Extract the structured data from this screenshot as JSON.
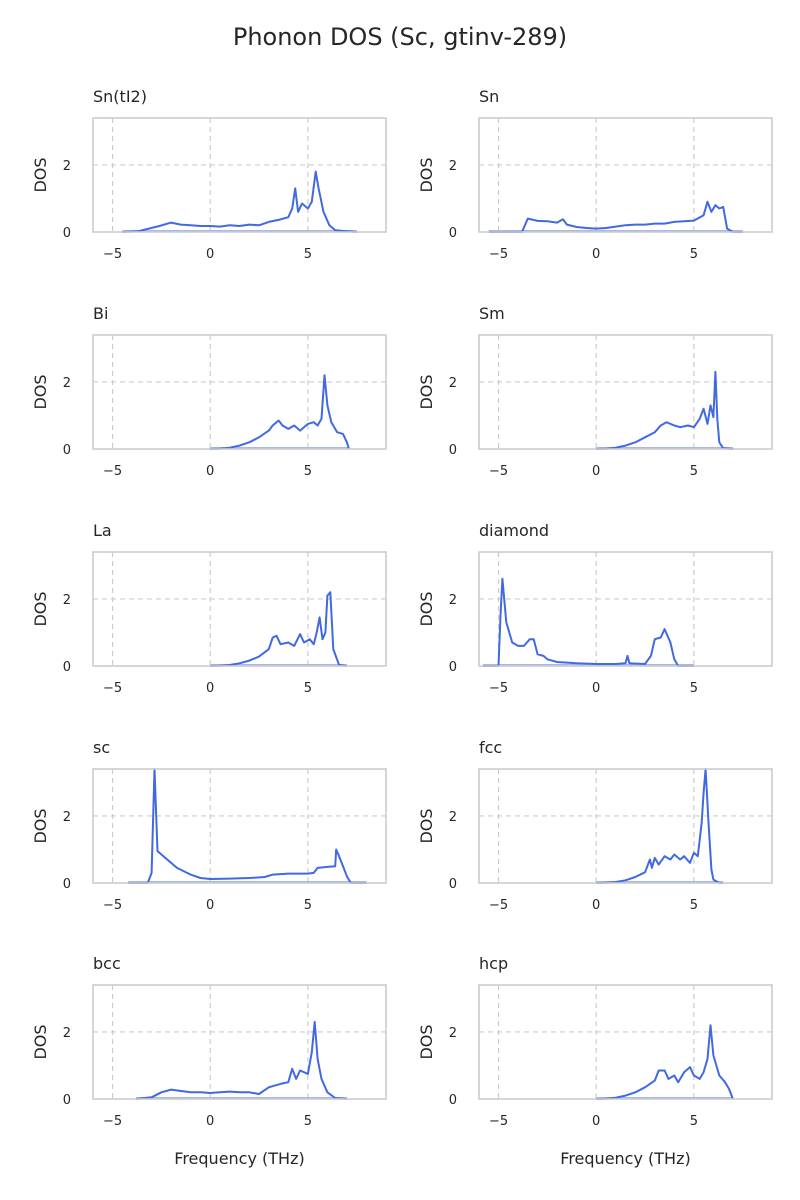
{
  "chart_data": {
    "type": "line",
    "title": "Phonon DOS (Sc, gtinv-289)",
    "xlabel": "Frequency (THz)",
    "ylabel": "DOS",
    "xlim": [
      -6,
      9
    ],
    "ylim": [
      0,
      3.4
    ],
    "xticks": [
      -5,
      0,
      5
    ],
    "yticks": [
      0,
      2
    ],
    "grid": true,
    "line_color": "#4169e1",
    "panels": [
      {
        "title": "Sn(tI2)",
        "points": [
          [
            -4.5,
            0
          ],
          [
            -3.7,
            0.02
          ],
          [
            -2.6,
            0.18
          ],
          [
            -2.0,
            0.28
          ],
          [
            -1.5,
            0.22
          ],
          [
            -1.0,
            0.2
          ],
          [
            -0.5,
            0.18
          ],
          [
            0,
            0.18
          ],
          [
            0.5,
            0.16
          ],
          [
            1.0,
            0.2
          ],
          [
            1.5,
            0.18
          ],
          [
            2.0,
            0.22
          ],
          [
            2.5,
            0.2
          ],
          [
            3.0,
            0.3
          ],
          [
            3.5,
            0.36
          ],
          [
            4.0,
            0.44
          ],
          [
            4.2,
            0.7
          ],
          [
            4.35,
            1.3
          ],
          [
            4.5,
            0.6
          ],
          [
            4.7,
            0.85
          ],
          [
            5.0,
            0.7
          ],
          [
            5.2,
            0.9
          ],
          [
            5.4,
            1.8
          ],
          [
            5.55,
            1.3
          ],
          [
            5.8,
            0.6
          ],
          [
            6.1,
            0.2
          ],
          [
            6.4,
            0.05
          ],
          [
            7.0,
            0.02
          ],
          [
            7.5,
            0
          ]
        ]
      },
      {
        "title": "Sn",
        "points": [
          [
            -5.5,
            0
          ],
          [
            -3.8,
            0
          ],
          [
            -3.5,
            0.4
          ],
          [
            -3.0,
            0.33
          ],
          [
            -2.5,
            0.32
          ],
          [
            -2.0,
            0.28
          ],
          [
            -1.7,
            0.38
          ],
          [
            -1.5,
            0.22
          ],
          [
            -1.0,
            0.15
          ],
          [
            -0.5,
            0.12
          ],
          [
            0,
            0.1
          ],
          [
            0.5,
            0.12
          ],
          [
            1.0,
            0.16
          ],
          [
            1.5,
            0.2
          ],
          [
            2.0,
            0.22
          ],
          [
            2.5,
            0.22
          ],
          [
            3.0,
            0.25
          ],
          [
            3.5,
            0.25
          ],
          [
            4.0,
            0.3
          ],
          [
            4.5,
            0.32
          ],
          [
            5.0,
            0.34
          ],
          [
            5.5,
            0.5
          ],
          [
            5.7,
            0.9
          ],
          [
            5.9,
            0.6
          ],
          [
            6.1,
            0.8
          ],
          [
            6.3,
            0.7
          ],
          [
            6.5,
            0.75
          ],
          [
            6.7,
            0.1
          ],
          [
            7.0,
            0
          ],
          [
            7.5,
            0
          ]
        ]
      },
      {
        "title": "Bi",
        "points": [
          [
            0,
            0
          ],
          [
            0.5,
            0.01
          ],
          [
            1.0,
            0.04
          ],
          [
            1.5,
            0.1
          ],
          [
            2.0,
            0.2
          ],
          [
            2.5,
            0.35
          ],
          [
            3.0,
            0.55
          ],
          [
            3.2,
            0.7
          ],
          [
            3.5,
            0.85
          ],
          [
            3.7,
            0.7
          ],
          [
            4.0,
            0.6
          ],
          [
            4.3,
            0.7
          ],
          [
            4.6,
            0.55
          ],
          [
            5.0,
            0.75
          ],
          [
            5.3,
            0.8
          ],
          [
            5.5,
            0.7
          ],
          [
            5.7,
            0.9
          ],
          [
            5.85,
            2.2
          ],
          [
            6.0,
            1.3
          ],
          [
            6.2,
            0.8
          ],
          [
            6.5,
            0.5
          ],
          [
            6.8,
            0.45
          ],
          [
            7.0,
            0.2
          ],
          [
            7.1,
            0
          ]
        ]
      },
      {
        "title": "Sm",
        "points": [
          [
            0,
            0
          ],
          [
            0.5,
            0.01
          ],
          [
            1.0,
            0.04
          ],
          [
            1.5,
            0.1
          ],
          [
            2.0,
            0.2
          ],
          [
            2.5,
            0.35
          ],
          [
            3.0,
            0.5
          ],
          [
            3.3,
            0.7
          ],
          [
            3.6,
            0.8
          ],
          [
            4.0,
            0.7
          ],
          [
            4.3,
            0.65
          ],
          [
            4.7,
            0.7
          ],
          [
            5.0,
            0.65
          ],
          [
            5.3,
            0.9
          ],
          [
            5.5,
            1.2
          ],
          [
            5.7,
            0.75
          ],
          [
            5.85,
            1.3
          ],
          [
            6.0,
            0.95
          ],
          [
            6.1,
            2.3
          ],
          [
            6.2,
            0.9
          ],
          [
            6.3,
            0.2
          ],
          [
            6.5,
            0.02
          ],
          [
            7.0,
            0
          ]
        ]
      },
      {
        "title": "La",
        "points": [
          [
            0,
            0
          ],
          [
            0.5,
            0.01
          ],
          [
            1.0,
            0.03
          ],
          [
            1.5,
            0.08
          ],
          [
            2.0,
            0.16
          ],
          [
            2.5,
            0.28
          ],
          [
            3.0,
            0.5
          ],
          [
            3.2,
            0.85
          ],
          [
            3.4,
            0.9
          ],
          [
            3.6,
            0.65
          ],
          [
            4.0,
            0.7
          ],
          [
            4.3,
            0.6
          ],
          [
            4.6,
            0.95
          ],
          [
            4.8,
            0.7
          ],
          [
            5.1,
            0.8
          ],
          [
            5.3,
            0.65
          ],
          [
            5.45,
            1.0
          ],
          [
            5.6,
            1.45
          ],
          [
            5.75,
            0.8
          ],
          [
            5.9,
            1.0
          ],
          [
            6.0,
            2.1
          ],
          [
            6.15,
            2.2
          ],
          [
            6.3,
            0.5
          ],
          [
            6.6,
            0.03
          ],
          [
            7.0,
            0
          ]
        ]
      },
      {
        "title": "diamond",
        "points": [
          [
            -5.8,
            0
          ],
          [
            -5.0,
            0
          ],
          [
            -4.9,
            1.5
          ],
          [
            -4.8,
            2.6
          ],
          [
            -4.6,
            1.3
          ],
          [
            -4.3,
            0.7
          ],
          [
            -4.0,
            0.6
          ],
          [
            -3.7,
            0.6
          ],
          [
            -3.4,
            0.8
          ],
          [
            -3.2,
            0.8
          ],
          [
            -3.0,
            0.35
          ],
          [
            -2.7,
            0.3
          ],
          [
            -2.5,
            0.2
          ],
          [
            -2.0,
            0.12
          ],
          [
            -1.0,
            0.08
          ],
          [
            0,
            0.06
          ],
          [
            1.0,
            0.06
          ],
          [
            1.5,
            0.08
          ],
          [
            1.6,
            0.3
          ],
          [
            1.7,
            0.08
          ],
          [
            2.5,
            0.06
          ],
          [
            2.8,
            0.3
          ],
          [
            3.0,
            0.8
          ],
          [
            3.3,
            0.85
          ],
          [
            3.5,
            1.1
          ],
          [
            3.8,
            0.7
          ],
          [
            4.0,
            0.2
          ],
          [
            4.2,
            0
          ],
          [
            5.0,
            0
          ]
        ]
      },
      {
        "title": "sc",
        "points": [
          [
            -4.2,
            0
          ],
          [
            -3.2,
            0
          ],
          [
            -3.0,
            0.3
          ],
          [
            -2.85,
            3.4
          ],
          [
            -2.7,
            0.95
          ],
          [
            -2.3,
            0.75
          ],
          [
            -1.7,
            0.45
          ],
          [
            -1.0,
            0.25
          ],
          [
            -0.5,
            0.15
          ],
          [
            0,
            0.12
          ],
          [
            1.0,
            0.13
          ],
          [
            2.0,
            0.15
          ],
          [
            2.8,
            0.18
          ],
          [
            3.2,
            0.25
          ],
          [
            4.0,
            0.28
          ],
          [
            5.0,
            0.28
          ],
          [
            5.3,
            0.3
          ],
          [
            5.5,
            0.45
          ],
          [
            6.0,
            0.48
          ],
          [
            6.4,
            0.5
          ],
          [
            6.45,
            1.0
          ],
          [
            6.6,
            0.8
          ],
          [
            6.8,
            0.5
          ],
          [
            7.0,
            0.2
          ],
          [
            7.2,
            0
          ],
          [
            8.0,
            0
          ]
        ]
      },
      {
        "title": "fcc",
        "points": [
          [
            0,
            0
          ],
          [
            0.5,
            0.01
          ],
          [
            1.0,
            0.03
          ],
          [
            1.5,
            0.08
          ],
          [
            2.0,
            0.18
          ],
          [
            2.5,
            0.32
          ],
          [
            2.75,
            0.7
          ],
          [
            2.85,
            0.45
          ],
          [
            3.0,
            0.75
          ],
          [
            3.2,
            0.55
          ],
          [
            3.5,
            0.8
          ],
          [
            3.8,
            0.7
          ],
          [
            4.0,
            0.85
          ],
          [
            4.3,
            0.7
          ],
          [
            4.5,
            0.8
          ],
          [
            4.8,
            0.6
          ],
          [
            5.0,
            0.9
          ],
          [
            5.2,
            0.8
          ],
          [
            5.4,
            1.8
          ],
          [
            5.5,
            2.7
          ],
          [
            5.6,
            3.4
          ],
          [
            5.75,
            1.8
          ],
          [
            5.9,
            0.4
          ],
          [
            6.0,
            0.1
          ],
          [
            6.3,
            0
          ],
          [
            6.5,
            0
          ]
        ]
      },
      {
        "title": "bcc",
        "points": [
          [
            -3.8,
            0
          ],
          [
            -3.0,
            0.05
          ],
          [
            -2.5,
            0.2
          ],
          [
            -2.0,
            0.28
          ],
          [
            -1.5,
            0.24
          ],
          [
            -1.0,
            0.2
          ],
          [
            -0.5,
            0.2
          ],
          [
            0,
            0.18
          ],
          [
            0.5,
            0.2
          ],
          [
            1.0,
            0.22
          ],
          [
            1.5,
            0.2
          ],
          [
            2.0,
            0.2
          ],
          [
            2.5,
            0.15
          ],
          [
            3.0,
            0.35
          ],
          [
            3.3,
            0.4
          ],
          [
            3.6,
            0.45
          ],
          [
            4.0,
            0.5
          ],
          [
            4.2,
            0.9
          ],
          [
            4.4,
            0.6
          ],
          [
            4.6,
            0.85
          ],
          [
            5.0,
            0.75
          ],
          [
            5.2,
            1.4
          ],
          [
            5.35,
            2.3
          ],
          [
            5.5,
            1.2
          ],
          [
            5.7,
            0.6
          ],
          [
            6.0,
            0.2
          ],
          [
            6.4,
            0.03
          ],
          [
            7.0,
            0
          ]
        ]
      },
      {
        "title": "hcp",
        "points": [
          [
            0,
            0
          ],
          [
            0.5,
            0.01
          ],
          [
            1.0,
            0.04
          ],
          [
            1.5,
            0.1
          ],
          [
            2.0,
            0.2
          ],
          [
            2.5,
            0.35
          ],
          [
            3.0,
            0.55
          ],
          [
            3.2,
            0.85
          ],
          [
            3.5,
            0.85
          ],
          [
            3.7,
            0.6
          ],
          [
            4.0,
            0.7
          ],
          [
            4.2,
            0.5
          ],
          [
            4.5,
            0.8
          ],
          [
            4.8,
            0.95
          ],
          [
            5.0,
            0.7
          ],
          [
            5.3,
            0.6
          ],
          [
            5.5,
            0.8
          ],
          [
            5.7,
            1.2
          ],
          [
            5.85,
            2.2
          ],
          [
            6.0,
            1.3
          ],
          [
            6.3,
            0.7
          ],
          [
            6.6,
            0.5
          ],
          [
            6.8,
            0.3
          ],
          [
            7.0,
            0
          ]
        ]
      }
    ]
  }
}
